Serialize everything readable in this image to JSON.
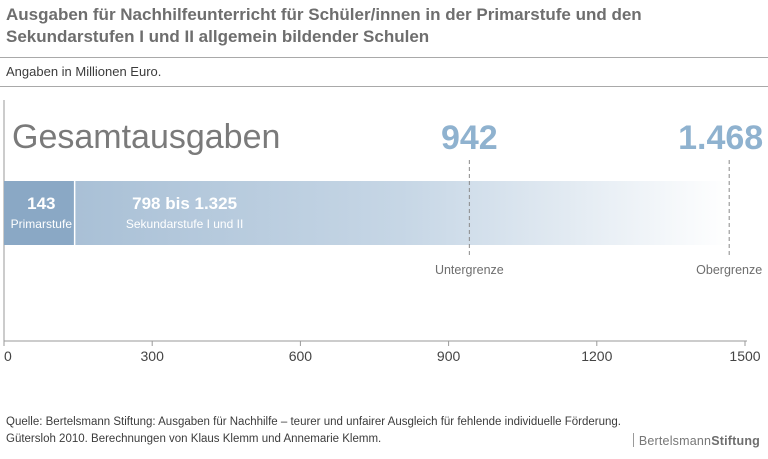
{
  "title": "Ausgaben für Nachhilfeunterricht für Schüler/innen in der Primarstufe und den Sekundarstufen I und II allgemein bildender Schulen",
  "subtitle": "Angaben in Millionen Euro.",
  "source": "Quelle: Bertelsmann Stiftung: Ausgaben für Nachhilfe – teurer und unfairer Ausgleich für fehlende individuelle Förderung. Gütersloh 2010. Berechnungen von Klaus Klemm und Annemarie Klemm.",
  "logo": {
    "part1": "Bertelsmann",
    "part2": "Stiftung"
  },
  "colors": {
    "primary_bar": "#8aa8c5",
    "secondary_bar": "#a9c0d6",
    "highlight_value": "#8fb2cf",
    "heading": "#7a7a7a"
  },
  "chart_data": {
    "type": "bar",
    "orientation": "horizontal-stacked",
    "heading": "Gesamtausgaben",
    "xlim": [
      0,
      1500
    ],
    "xticks": [
      0,
      300,
      600,
      900,
      1200,
      1500
    ],
    "xtick_labels": [
      "0",
      "300",
      "600",
      "900",
      "1200",
      "1500"
    ],
    "segments": [
      {
        "name": "Primarstufe",
        "value_label": "143",
        "start": 0,
        "end": 143
      },
      {
        "name": "Sekundarstufe I und  II",
        "value_label": "798 bis 1.325",
        "start": 143,
        "end": 1468,
        "low_end": 942
      }
    ],
    "markers": [
      {
        "label": "Untergrenze",
        "value": 942,
        "value_label": "942"
      },
      {
        "label": "Obergrenze",
        "value": 1468,
        "value_label": "1.468"
      }
    ]
  }
}
